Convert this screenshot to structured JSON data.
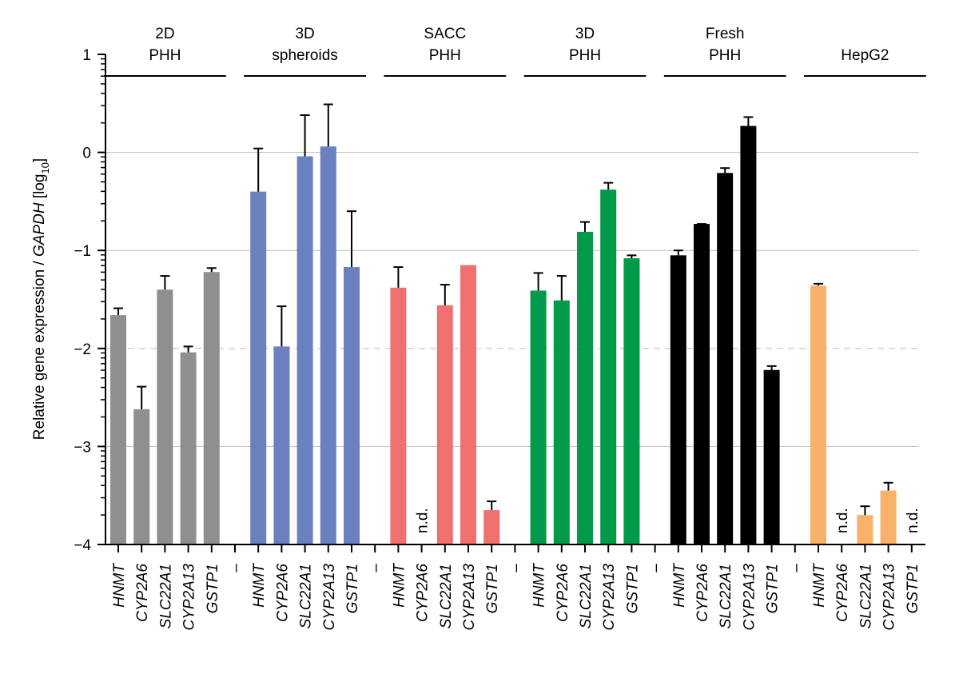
{
  "chart_data": {
    "type": "bar",
    "title": "",
    "ylabel": {
      "prefix": "Relative gene expression / ",
      "italic": "GAPDH",
      "suffix_open": " [log",
      "subscript": "10",
      "suffix_close": "]"
    },
    "xlabel": "",
    "ylim": [
      -4,
      1
    ],
    "yticks": [
      1,
      0,
      -1,
      -2,
      -3,
      -4
    ],
    "ytick_labels": [
      "1",
      "0",
      "−1",
      "−2",
      "−3",
      "−4"
    ],
    "grid": {
      "solid_at": [
        0,
        -1,
        -3
      ],
      "dashed_at": [
        -2
      ]
    },
    "minor_ticks": "log-spaced within each decade",
    "categories": [
      "HNMT",
      "CYP2A6",
      "SLC22A1",
      "CYP2A13",
      "GSTP1"
    ],
    "separator_label": "–",
    "nd_label": "n.d.",
    "groups": [
      {
        "name": "2D PHH",
        "title_lines": [
          "2D",
          "PHH"
        ],
        "color": "#8f8f8f",
        "values": [
          -1.66,
          -2.62,
          -1.4,
          -2.04,
          -1.22
        ],
        "error_upper": [
          -1.59,
          -2.39,
          -1.26,
          -1.98,
          -1.18
        ]
      },
      {
        "name": "3D spheroids",
        "title_lines": [
          "3D",
          "spheroids"
        ],
        "color": "#6a80bf",
        "values": [
          -0.4,
          -1.98,
          -0.04,
          0.06,
          -1.17
        ],
        "error_upper": [
          0.04,
          -1.57,
          0.38,
          0.49,
          -0.6
        ]
      },
      {
        "name": "SACC PHH",
        "title_lines": [
          "SACC",
          "PHH"
        ],
        "color": "#f07070",
        "values": [
          -1.38,
          null,
          -1.56,
          -1.15,
          -3.65
        ],
        "error_upper": [
          -1.17,
          null,
          -1.35,
          null,
          -3.56
        ]
      },
      {
        "name": "3D PHH",
        "title_lines": [
          "3D",
          "PHH"
        ],
        "color": "#009a4a",
        "values": [
          -1.41,
          -1.51,
          -0.81,
          -0.38,
          -1.08
        ],
        "error_upper": [
          -1.23,
          -1.26,
          -0.71,
          -0.31,
          -1.05
        ]
      },
      {
        "name": "Fresh PHH",
        "title_lines": [
          "Fresh",
          "PHH"
        ],
        "color": "#000000",
        "values": [
          -1.05,
          -0.73,
          -0.21,
          0.27,
          -2.22
        ],
        "error_upper": [
          -1.0,
          -0.73,
          -0.16,
          0.36,
          -2.18
        ]
      },
      {
        "name": "HepG2",
        "title_lines": [
          "HepG2"
        ],
        "color": "#f9b068",
        "values": [
          -1.36,
          null,
          -3.7,
          -3.45,
          null
        ],
        "error_upper": [
          -1.34,
          null,
          -3.61,
          -3.37,
          null
        ]
      }
    ]
  }
}
